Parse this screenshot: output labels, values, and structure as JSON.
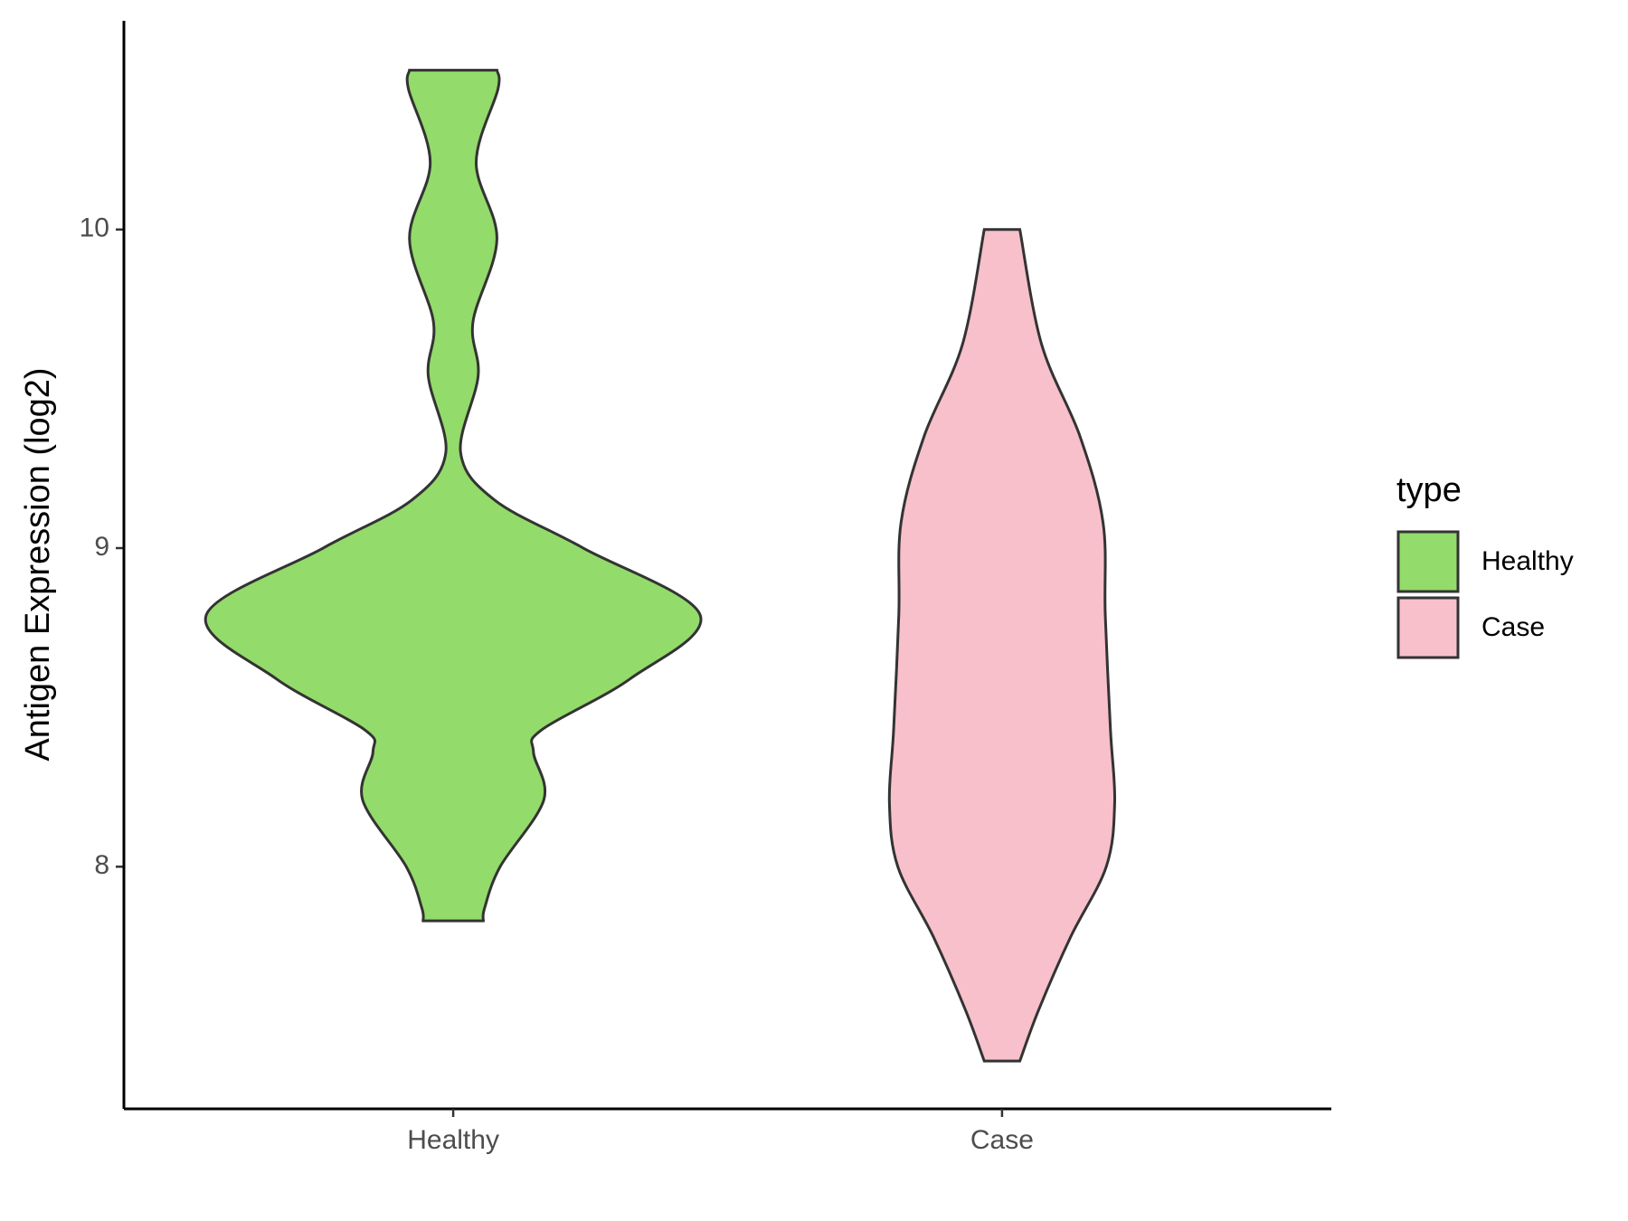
{
  "chart_data": {
    "type": "violin",
    "y_label": "Antigen Expression (log2)",
    "categories": [
      "Healthy",
      "Case"
    ],
    "legend_title": "type",
    "series": [
      {
        "name": "Healthy",
        "color": "#93DB6A",
        "y": [
          10.5,
          10.44,
          10.21,
          9.97,
          9.71,
          9.54,
          9.3,
          9.15,
          9.0,
          8.79,
          8.59,
          8.43,
          8.36,
          8.21,
          8.0,
          7.87,
          7.83
        ],
        "width": [
          0.177,
          0.181,
          0.093,
          0.177,
          0.08,
          0.101,
          0.03,
          0.169,
          0.527,
          1.0,
          0.717,
          0.359,
          0.325,
          0.367,
          0.19,
          0.127,
          0.122
        ]
      },
      {
        "name": "Case",
        "color": "#F7C0CB",
        "y": [
          10.0,
          9.64,
          9.35,
          9.08,
          8.79,
          8.43,
          8.2,
          8.0,
          7.78,
          7.55,
          7.39
        ],
        "width": [
          0.072,
          0.16,
          0.316,
          0.409,
          0.418,
          0.439,
          0.456,
          0.422,
          0.278,
          0.148,
          0.072
        ]
      }
    ],
    "ylim": [
      7.24,
      10.655
    ],
    "yticks": [
      8,
      9,
      10
    ]
  }
}
